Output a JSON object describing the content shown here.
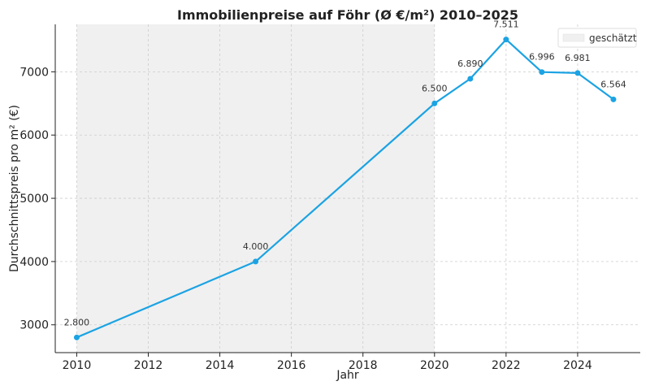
{
  "chart_data": {
    "type": "line",
    "title": "Immobilienpreise auf Föhr (Ø €/m²) 2010–2025",
    "xlabel": "Jahr",
    "ylabel": "Durchschnittspreis pro m² (€)",
    "x": [
      2010,
      2015,
      2020,
      2021,
      2022,
      2023,
      2024,
      2025
    ],
    "values": [
      2800,
      4000,
      6500,
      6890,
      7511,
      6996,
      6981,
      6564
    ],
    "data_labels": [
      "2.800",
      "4.000",
      "6.500",
      "6.890",
      "7.511",
      "6.996",
      "6.981",
      "6.564"
    ],
    "xlim": [
      2009.4,
      2025.75
    ],
    "ylim": [
      2560,
      7750
    ],
    "x_ticks": [
      2010,
      2012,
      2014,
      2016,
      2018,
      2020,
      2022,
      2024
    ],
    "y_ticks": [
      3000,
      4000,
      5000,
      6000,
      7000
    ],
    "shaded_region": {
      "from": 2010,
      "to": 2020,
      "label": "geschätzt",
      "color": "#f0f0f0"
    },
    "line_color": "#1ba3e3",
    "grid": true,
    "legend_position": "top-right"
  }
}
